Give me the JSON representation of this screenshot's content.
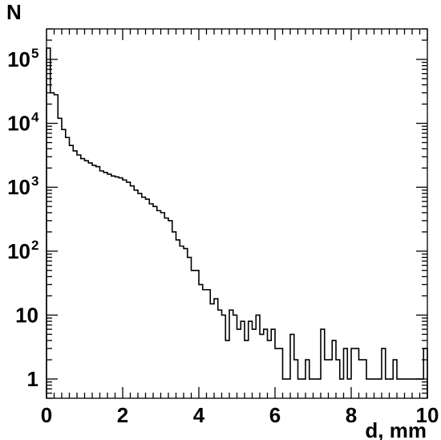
{
  "chart_data": {
    "type": "histogram",
    "xlabel": "d, mm",
    "ylabel": "N",
    "xlim": [
      0,
      10
    ],
    "ylim": [
      0.5,
      300000
    ],
    "yscale": "log",
    "x_ticks": [
      "0",
      "2",
      "4",
      "6",
      "8",
      "10"
    ],
    "y_ticks": [
      {
        "value": 1,
        "base": "1",
        "exp": ""
      },
      {
        "value": 10,
        "base": "10",
        "exp": ""
      },
      {
        "value": 100,
        "base": "10",
        "exp": "2"
      },
      {
        "value": 1000,
        "base": "10",
        "exp": "3"
      },
      {
        "value": 10000,
        "base": "10",
        "exp": "4"
      },
      {
        "value": 100000,
        "base": "10",
        "exp": "5"
      }
    ],
    "grid": false,
    "bin_width": 0.1,
    "bin_start": 0,
    "values": [
      150000,
      30000,
      28000,
      12000,
      8000,
      6000,
      4500,
      3700,
      3200,
      2800,
      2600,
      2400,
      2200,
      2100,
      1800,
      1700,
      1600,
      1500,
      1450,
      1400,
      1300,
      1200,
      1050,
      900,
      800,
      700,
      650,
      550,
      500,
      430,
      400,
      330,
      300,
      200,
      150,
      120,
      110,
      80,
      50,
      50,
      30,
      25,
      25,
      15,
      18,
      12,
      10,
      4,
      12,
      10,
      6,
      8,
      4,
      8,
      6,
      10,
      5,
      6,
      4,
      6,
      3,
      3,
      1,
      1,
      5,
      2,
      1,
      1,
      2,
      1,
      1,
      1,
      6,
      2,
      2,
      4,
      2,
      1,
      3,
      1,
      3,
      3,
      2,
      2,
      1,
      1,
      1,
      1,
      3,
      1,
      1,
      2,
      1,
      1,
      1,
      1,
      1,
      1,
      1,
      3
    ]
  }
}
